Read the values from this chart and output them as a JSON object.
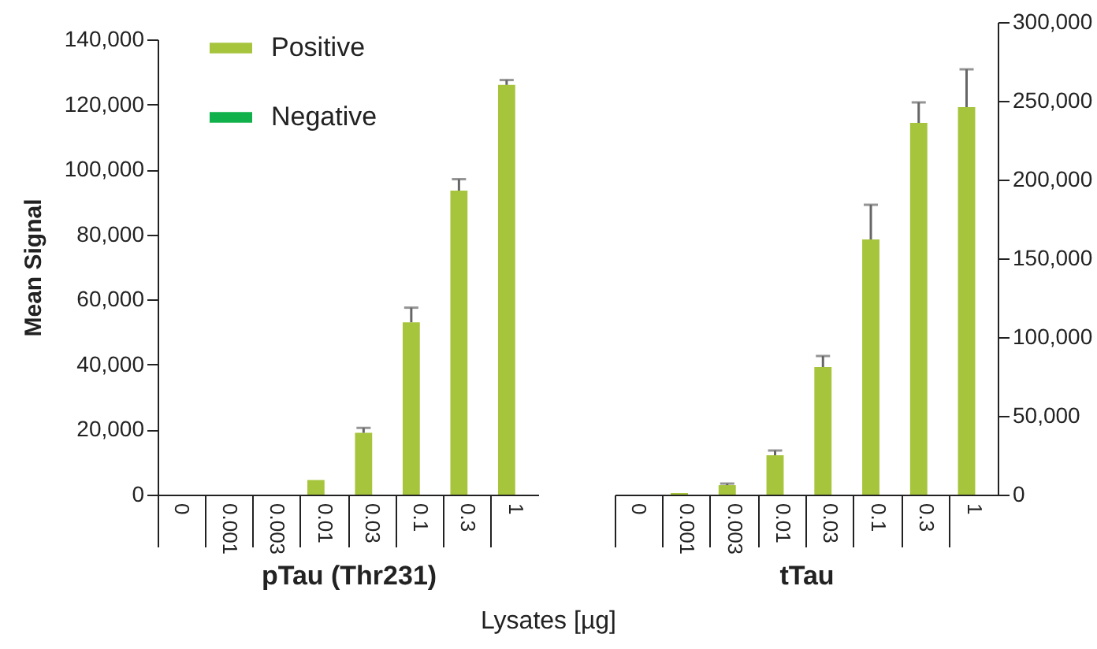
{
  "chart_data": [
    {
      "type": "bar",
      "xlabel": "pTau (Thr231)",
      "ylabel": "Mean Signal",
      "categories": [
        "0",
        "0.001",
        "0.003",
        "0.01",
        "0.03",
        "0.1",
        "0.3",
        "1"
      ],
      "series": [
        {
          "name": "Positive",
          "color": "#a6c53c",
          "values": [
            0,
            0,
            0,
            4500,
            19000,
            53000,
            93500,
            126000
          ],
          "errors": [
            null,
            null,
            null,
            null,
            [
              19000,
              20500
            ],
            [
              53000,
              57500
            ],
            [
              93500,
              97000
            ],
            [
              126000,
              127500
            ]
          ]
        },
        {
          "name": "Negative",
          "color": "#10b04a",
          "values": [
            0,
            0,
            0,
            0,
            0,
            0,
            0,
            0
          ]
        }
      ],
      "ylim": [
        0,
        140000
      ],
      "yticks": [
        0,
        {
          "value": 20000,
          "label": "20,000"
        },
        {
          "value": 40000,
          "label": "40,000"
        },
        {
          "value": 60000,
          "label": "60,000"
        },
        {
          "value": 80000,
          "label": "80,000"
        },
        {
          "value": 100000,
          "label": "100,000"
        },
        {
          "value": 120000,
          "label": "120,000"
        },
        {
          "value": 140000,
          "label": "140,000"
        }
      ],
      "legend": "top left",
      "annotations": [
        "Lysates [µg]"
      ]
    },
    {
      "type": "bar",
      "xlabel": "tTau",
      "categories": [
        "0",
        "0.001",
        "0.003",
        "0.01",
        "0.03",
        "0.1",
        "0.3",
        "1"
      ],
      "series": [
        {
          "color": "#a6c53c",
          "axis": "y2",
          "values": [
            0,
            1000,
            6000,
            25000,
            81000,
            162000,
            236000,
            246000
          ],
          "errors": [
            null,
            null,
            [
              6000,
              7000
            ],
            [
              25000,
              28000
            ],
            [
              81000,
              88000
            ],
            [
              162000,
              184000
            ],
            [
              236000,
              249000
            ],
            [
              246000,
              270000
            ]
          ]
        }
      ],
      "y2lim": [
        0,
        300000
      ],
      "y2ticks": [
        0,
        {
          "value": 50000,
          "label": "50,000"
        },
        {
          "value": 100000,
          "label": "100,000"
        },
        {
          "value": 150000,
          "label": "150,000"
        },
        {
          "value": 200000,
          "label": "200,000"
        },
        {
          "value": 250000,
          "label": "250,000"
        },
        {
          "value": 300000,
          "label": "300,000"
        }
      ]
    }
  ]
}
